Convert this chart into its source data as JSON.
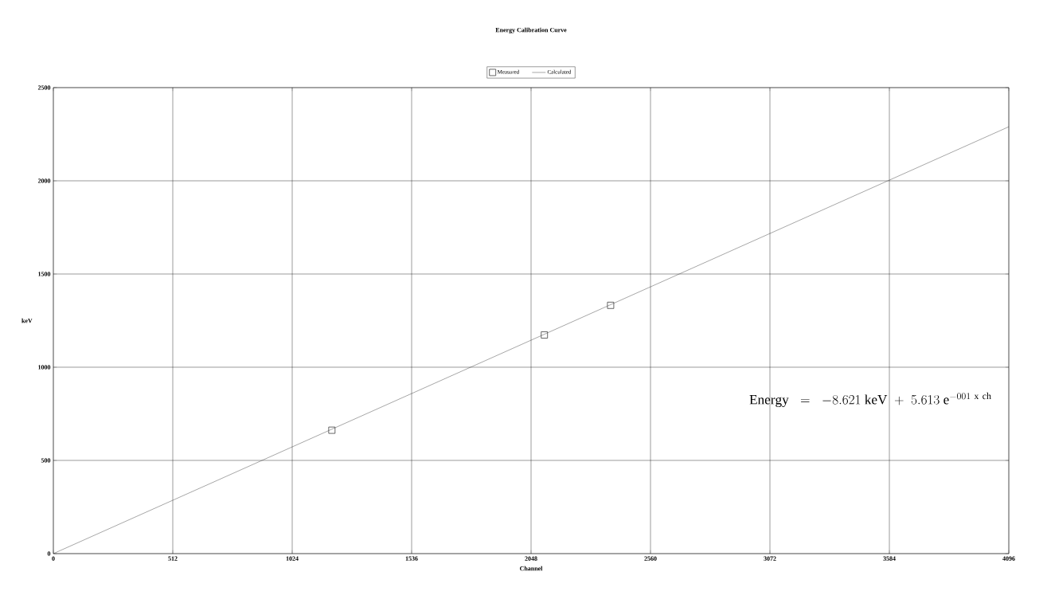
{
  "chart_data": {
    "type": "scatter",
    "title": "Energy Calibration Curve",
    "xlabel": "Channel",
    "ylabel": "keV",
    "xlim": [
      0,
      4096
    ],
    "ylim": [
      0,
      2500
    ],
    "xticks": [
      0,
      512,
      1024,
      1536,
      2048,
      2560,
      3072,
      3584,
      4096
    ],
    "yticks": [
      0,
      500,
      1000,
      1500,
      2000,
      2500
    ],
    "grid": true,
    "legend": "top",
    "series": [
      {
        "name": "Measured",
        "marker": "square",
        "color": "#404040",
        "x": [
          1194,
          2105,
          2389
        ],
        "values": [
          662,
          1173,
          1332
        ]
      },
      {
        "name": "Calculated",
        "type": "line",
        "color": "#202020",
        "x": [
          0,
          4096
        ],
        "values": [
          0,
          2290
        ]
      }
    ],
    "annotations": [
      "\\mathrm{Energy}\\;\\;=\\;\\;-8.621\\ \\mathrm{keV}\\;+\\;5.613\\ \\mathrm{e}^{-001\\ \\mathrm{x\\ ch}}"
    ]
  }
}
